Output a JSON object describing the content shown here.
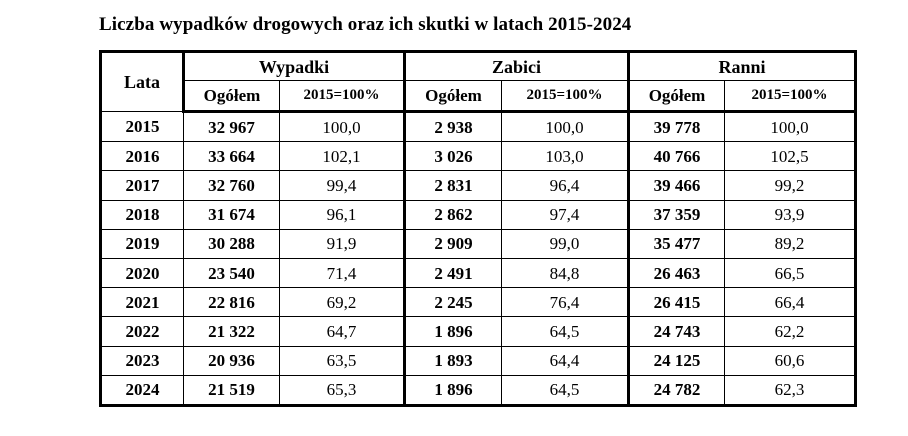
{
  "title": "Liczba wypadków drogowych oraz ich skutki w latach 2015-2024",
  "table": {
    "year_header": "Lata",
    "groups": [
      "Wypadki",
      "Zabici",
      "Ranni"
    ],
    "subheaders": {
      "total": "Ogółem",
      "index": "2015=100%"
    },
    "rows": [
      {
        "year": "2015",
        "wypadki_total": "32 967",
        "wypadki_index": "100,0",
        "zabici_total": "2 938",
        "zabici_index": "100,0",
        "ranni_total": "39 778",
        "ranni_index": "100,0"
      },
      {
        "year": "2016",
        "wypadki_total": "33 664",
        "wypadki_index": "102,1",
        "zabici_total": "3 026",
        "zabici_index": "103,0",
        "ranni_total": "40 766",
        "ranni_index": "102,5"
      },
      {
        "year": "2017",
        "wypadki_total": "32 760",
        "wypadki_index": "99,4",
        "zabici_total": "2 831",
        "zabici_index": "96,4",
        "ranni_total": "39 466",
        "ranni_index": "99,2"
      },
      {
        "year": "2018",
        "wypadki_total": "31 674",
        "wypadki_index": "96,1",
        "zabici_total": "2 862",
        "zabici_index": "97,4",
        "ranni_total": "37 359",
        "ranni_index": "93,9"
      },
      {
        "year": "2019",
        "wypadki_total": "30 288",
        "wypadki_index": "91,9",
        "zabici_total": "2 909",
        "zabici_index": "99,0",
        "ranni_total": "35 477",
        "ranni_index": "89,2"
      },
      {
        "year": "2020",
        "wypadki_total": "23 540",
        "wypadki_index": "71,4",
        "zabici_total": "2 491",
        "zabici_index": "84,8",
        "ranni_total": "26 463",
        "ranni_index": "66,5"
      },
      {
        "year": "2021",
        "wypadki_total": "22 816",
        "wypadki_index": "69,2",
        "zabici_total": "2 245",
        "zabici_index": "76,4",
        "ranni_total": "26 415",
        "ranni_index": "66,4"
      },
      {
        "year": "2022",
        "wypadki_total": "21 322",
        "wypadki_index": "64,7",
        "zabici_total": "1 896",
        "zabici_index": "64,5",
        "ranni_total": "24 743",
        "ranni_index": "62,2"
      },
      {
        "year": "2023",
        "wypadki_total": "20 936",
        "wypadki_index": "63,5",
        "zabici_total": "1 893",
        "zabici_index": "64,4",
        "ranni_total": "24 125",
        "ranni_index": "60,6"
      },
      {
        "year": "2024",
        "wypadki_total": "21 519",
        "wypadki_index": "65,3",
        "zabici_total": "1 896",
        "zabici_index": "64,5",
        "ranni_total": "24 782",
        "ranni_index": "62,3"
      }
    ]
  }
}
